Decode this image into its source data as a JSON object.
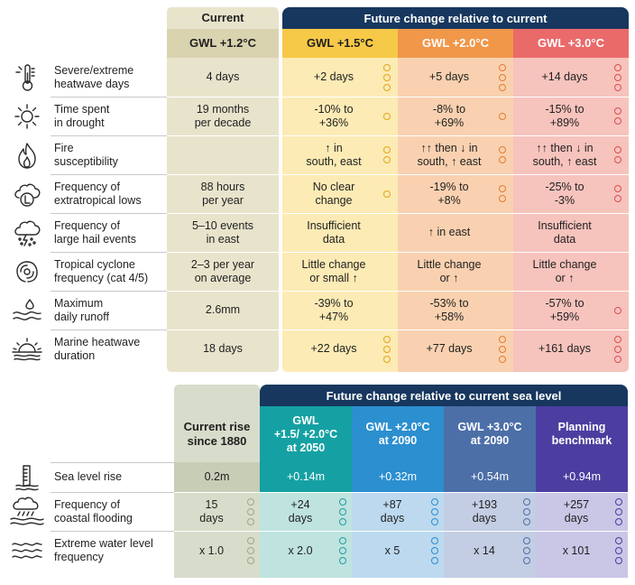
{
  "colors": {
    "current_bg": "#e8e4cc",
    "current_head": "#d9d3b0",
    "navy": "#17375e",
    "gwl15_head": "#f7c948",
    "gwl15_bg": "#fcebb5",
    "gwl20_head": "#f0974a",
    "gwl20_bg": "#f9d1b0",
    "gwl30_head": "#ea6a6a",
    "gwl30_bg": "#f7c3bd",
    "teal_dark": "#15a1a3",
    "teal_bg": "#bfe3df",
    "blue_dark": "#2b8fd0",
    "blue_bg": "#bcd9ef",
    "steel_dark": "#4c6fa8",
    "steel_bg": "#c3cde3",
    "purple_dark": "#4b3ea0",
    "purple_bg": "#cac6e6",
    "sea_current_bg": "#d8dccb",
    "sea_current_head": "#c8cdb6"
  },
  "top": {
    "current_label": "Current",
    "future_label": "Future change relative to current",
    "columns": [
      "GWL +1.2°C",
      "GWL +1.5°C",
      "GWL +2.0°C",
      "GWL +3.0°C"
    ],
    "rows": [
      {
        "icon": "thermometer-icon",
        "label_1": "Severe/extreme",
        "label_2": "heatwave days",
        "cur_1": "4 days",
        "cur_2": "",
        "v15_1": "+2 days",
        "v15_2": "",
        "v20_1": "+5 days",
        "v20_2": "",
        "v30_1": "+14 days",
        "v30_2": ""
      },
      {
        "icon": "sun-icon",
        "label_1": "Time spent",
        "label_2": "in drought",
        "cur_1": "19 months",
        "cur_2": "per decade",
        "v15_1": "-10% to",
        "v15_2": "+36%",
        "v20_1": "-8% to",
        "v20_2": "+69%",
        "v30_1": "-15% to",
        "v30_2": "+89%"
      },
      {
        "icon": "flame-icon",
        "label_1": "Fire",
        "label_2": "susceptibility",
        "cur_1": "",
        "cur_2": "",
        "v15_1": "↑ in",
        "v15_2": "south, east",
        "v20_1": "↑↑ then ↓ in",
        "v20_2": "south, ↑ east",
        "v30_1": "↑↑ then ↓ in",
        "v30_2": "south, ↑ east"
      },
      {
        "icon": "cloud-low-icon",
        "label_1": "Frequency of",
        "label_2": "extratropical lows",
        "cur_1": "88 hours",
        "cur_2": "per year",
        "v15_1": "No clear",
        "v15_2": "change",
        "v20_1": "-19% to",
        "v20_2": "+8%",
        "v30_1": "-25% to",
        "v30_2": "-3%"
      },
      {
        "icon": "hail-storm-icon",
        "label_1": "Frequency of",
        "label_2": "large hail events",
        "cur_1": "5–10 events",
        "cur_2": "in east",
        "v15_1": "Insufficient",
        "v15_2": "data",
        "v20_1": "↑ in east",
        "v20_2": "",
        "v30_1": "Insufficient",
        "v30_2": "data"
      },
      {
        "icon": "cyclone-icon",
        "label_1": "Tropical cyclone",
        "label_2": "frequency (cat 4/5)",
        "cur_1": "2–3 per year",
        "cur_2": "on average",
        "v15_1": "Little change",
        "v15_2": "or small ↑",
        "v20_1": "Little change",
        "v20_2": "or ↑",
        "v30_1": "Little change",
        "v30_2": "or ↑"
      },
      {
        "icon": "runoff-icon",
        "label_1": "Maximum",
        "label_2": "daily runoff",
        "cur_1": "2.6mm",
        "cur_2": "",
        "v15_1": "-39% to",
        "v15_2": "+47%",
        "v20_1": "-53% to",
        "v20_2": "+58%",
        "v30_1": "-57% to",
        "v30_2": "+59%"
      },
      {
        "icon": "sunset-sea-icon",
        "label_1": "Marine heatwave",
        "label_2": "duration",
        "cur_1": "18 days",
        "cur_2": "",
        "v15_1": "+22 days",
        "v15_2": "",
        "v20_1": "+77 days",
        "v20_2": "",
        "v30_1": "+161 days",
        "v30_2": ""
      }
    ],
    "dots": [
      [
        3,
        3,
        3
      ],
      [
        1,
        1,
        2
      ],
      [
        2,
        2,
        2
      ],
      [
        1,
        2,
        2
      ],
      [
        0,
        0,
        0
      ],
      [
        0,
        0,
        0
      ],
      [
        0,
        0,
        1
      ],
      [
        3,
        3,
        3
      ]
    ]
  },
  "bottom": {
    "current_label_1": "Current rise",
    "current_label_2": "since 1880",
    "future_label": "Future change relative to current sea level",
    "columns": [
      {
        "l1": "GWL",
        "l2": "+1.5/ +2.0°C",
        "l3": "at 2050"
      },
      {
        "l1": "GWL +2.0°C",
        "l2": "at 2090",
        "l3": ""
      },
      {
        "l1": "GWL +3.0°C",
        "l2": "at 2090",
        "l3": ""
      },
      {
        "l1": "Planning",
        "l2": "benchmark",
        "l3": ""
      }
    ],
    "rows": [
      {
        "icon": "tide-gauge-icon",
        "label_1": "Sea level rise",
        "label_2": "",
        "cur_1": "0.2m",
        "cur_2": "",
        "v1_1": "+0.14m",
        "v1_2": "",
        "v2_1": "+0.32m",
        "v2_2": "",
        "v3_1": "+0.54m",
        "v3_2": "",
        "v4_1": "+0.94m",
        "v4_2": ""
      },
      {
        "icon": "coastal-flood-icon",
        "label_1": "Frequency of",
        "label_2": "coastal flooding",
        "cur_1": "15",
        "cur_2": "days",
        "v1_1": "+24",
        "v1_2": "days",
        "v2_1": "+87",
        "v2_2": "days",
        "v3_1": "+193",
        "v3_2": "days",
        "v4_1": "+257",
        "v4_2": "days"
      },
      {
        "icon": "waves-icon",
        "label_1": "Extreme water level",
        "label_2": "frequency",
        "cur_1": "x 1.0",
        "cur_2": "",
        "v1_1": "x 2.0",
        "v1_2": "",
        "v2_1": "x 5",
        "v2_2": "",
        "v3_1": "x 14",
        "v3_2": "",
        "v4_1": "x 101",
        "v4_2": ""
      }
    ],
    "dots": [
      [
        0,
        0,
        0,
        0,
        0
      ],
      [
        3,
        3,
        3,
        3,
        3
      ],
      [
        3,
        3,
        3,
        3,
        3
      ]
    ]
  }
}
